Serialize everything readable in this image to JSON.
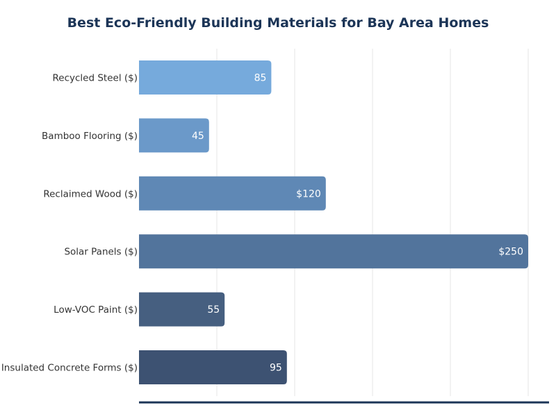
{
  "chart_data": {
    "type": "bar",
    "orientation": "horizontal",
    "title": "Best Eco-Friendly Building Materials for Bay Area Homes",
    "xlabel": "",
    "ylabel": "",
    "categories": [
      "Recycled Steel ($)",
      "Bamboo Flooring ($)",
      "Reclaimed Wood ($)",
      "Solar Panels ($)",
      "Low-VOC Paint ($)",
      "Insulated Concrete Forms ($)"
    ],
    "values": [
      85,
      45,
      120,
      250,
      55,
      95
    ],
    "data_labels": [
      "85",
      "45",
      "$120",
      "$250",
      "55",
      "95"
    ],
    "xlim": [
      0,
      263
    ],
    "grid": true,
    "legend": "none",
    "colors": [
      "#76aadc",
      "#6b99c9",
      "#5f88b5",
      "#52749c",
      "#465f80",
      "#3d5272"
    ],
    "axis_color": "#1c3557"
  }
}
